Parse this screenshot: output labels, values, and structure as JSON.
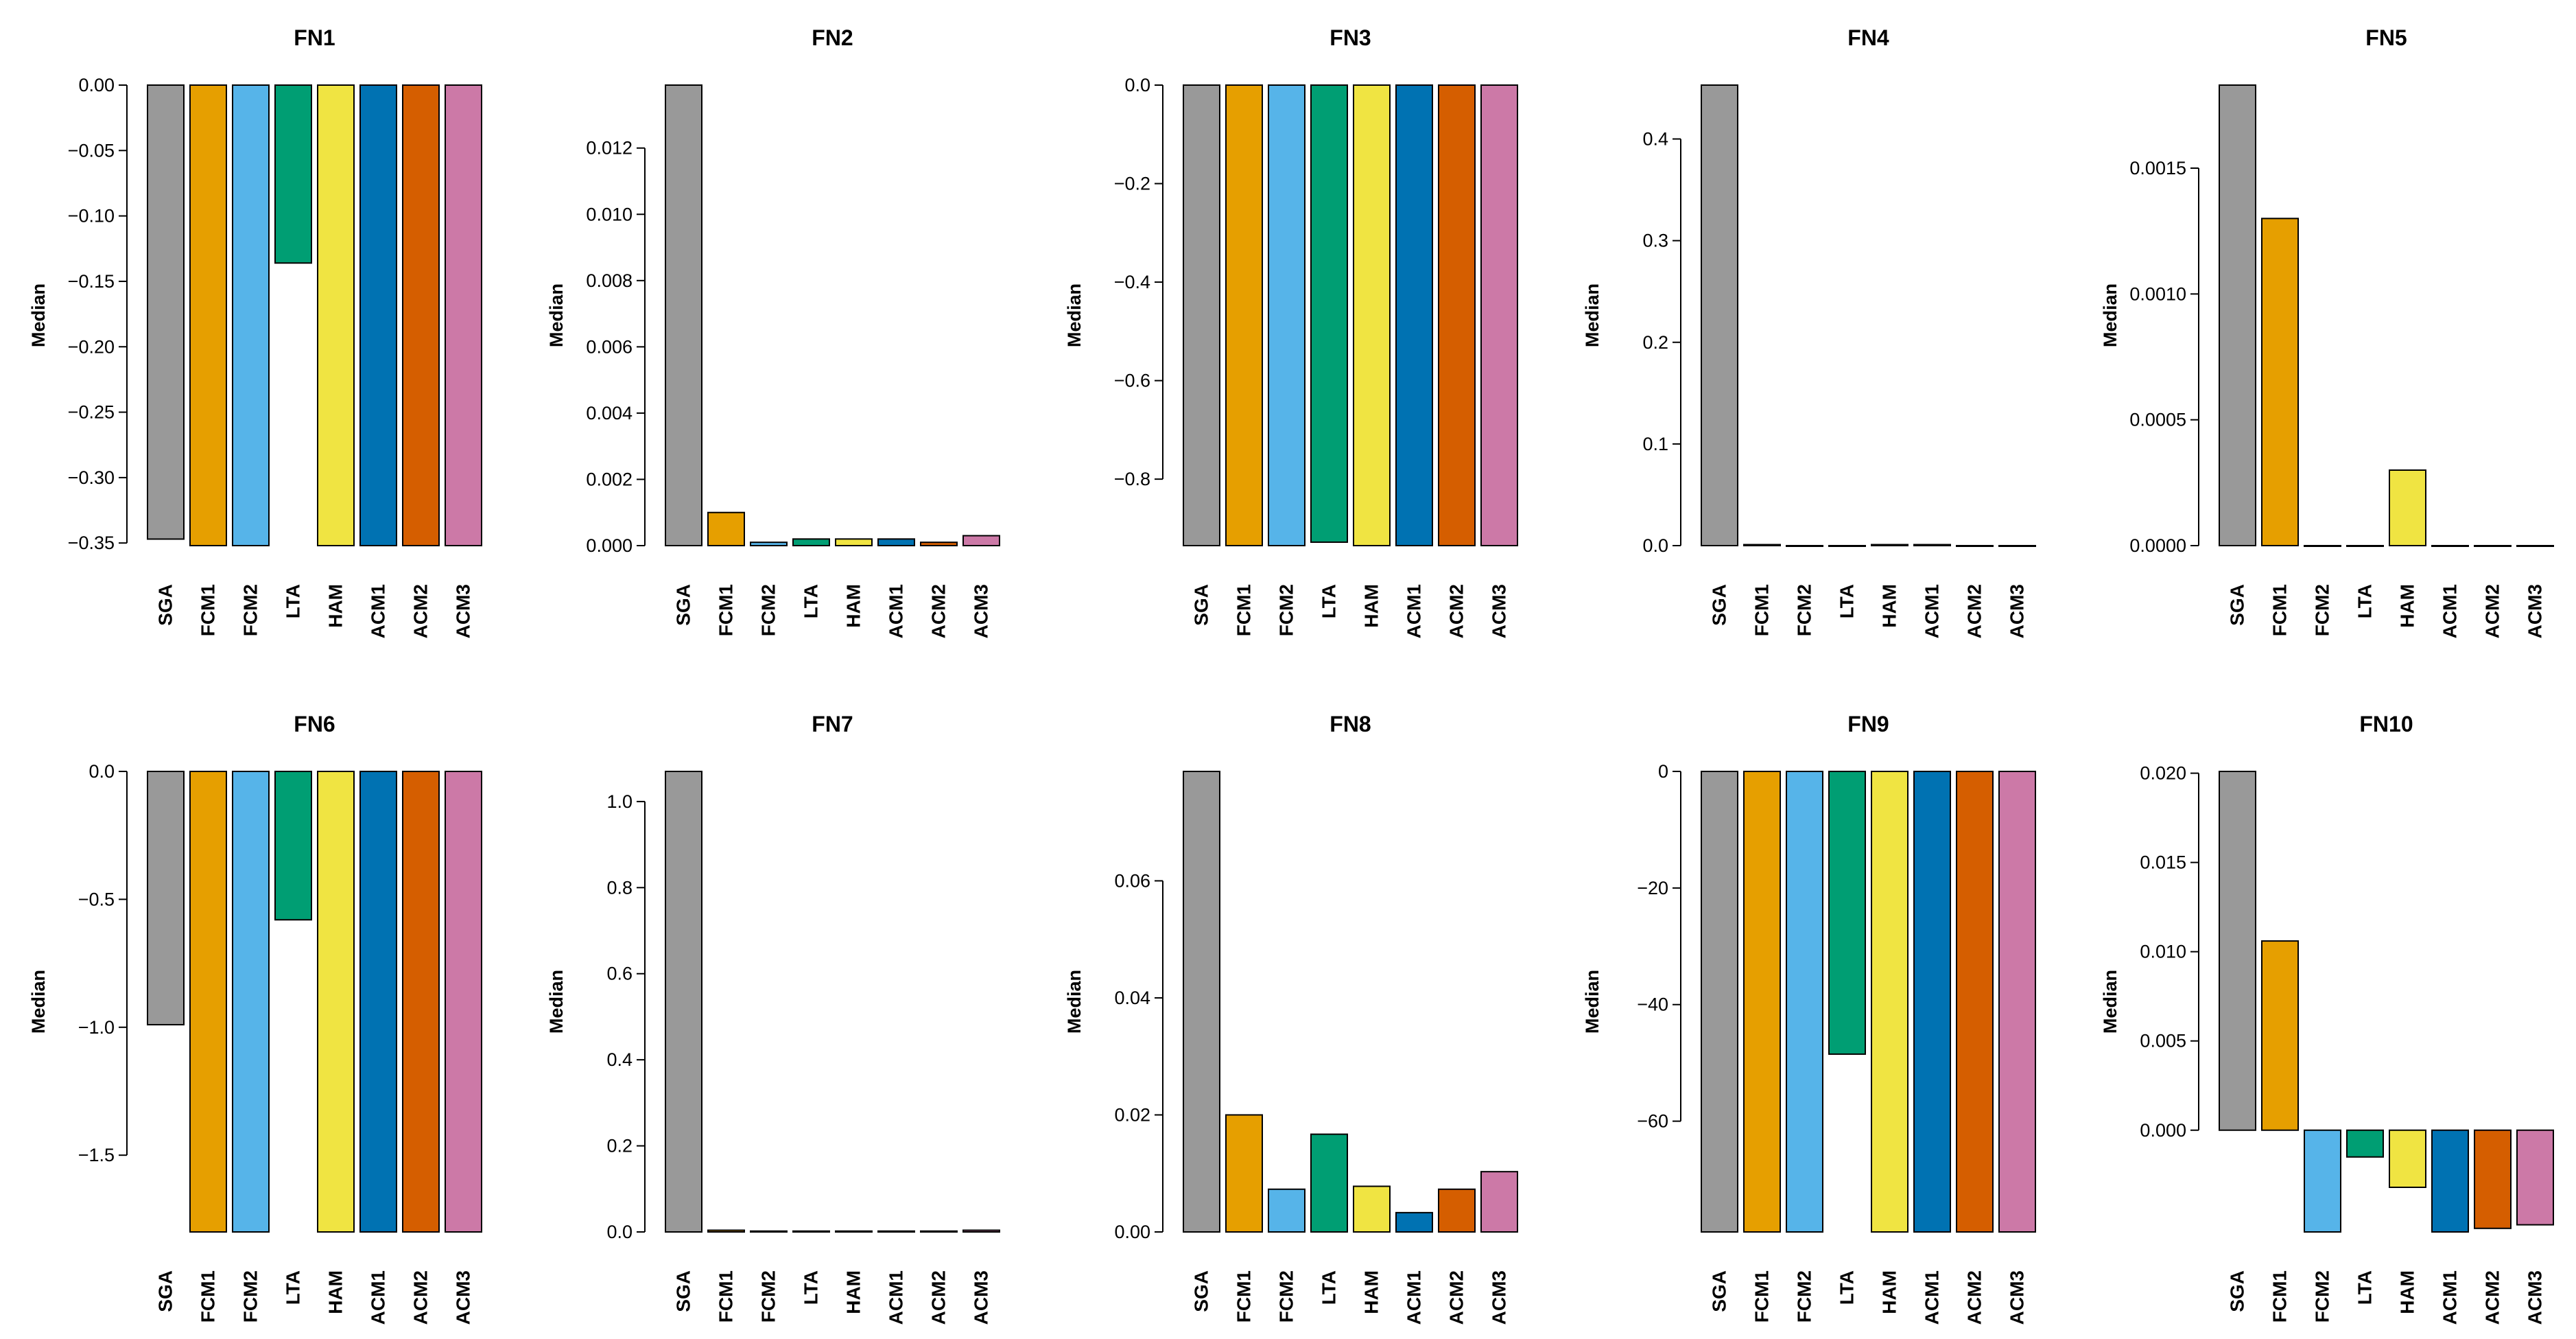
{
  "colors": {
    "SGA": "#999999",
    "FCM1": "#E69F00",
    "FCM2": "#56B4E9",
    "LTA": "#009E73",
    "HAM": "#F0E442",
    "ACM1": "#0072B2",
    "ACM2": "#D55E00",
    "ACM3": "#CC79A7"
  },
  "chart_data": [
    {
      "type": "bar",
      "title": "FN1",
      "ylabel": "Median",
      "categories": [
        "SGA",
        "FCM1",
        "FCM2",
        "LTA",
        "HAM",
        "ACM1",
        "ACM2",
        "ACM3"
      ],
      "values": [
        -0.347,
        -0.352,
        -0.352,
        -0.136,
        -0.352,
        -0.352,
        -0.352,
        -0.352
      ],
      "ylim": [
        -0.352,
        0.0
      ],
      "ticks": [
        0.0,
        -0.05,
        -0.1,
        -0.15,
        -0.2,
        -0.25,
        -0.3,
        -0.35
      ],
      "tick_labels": [
        "0.00",
        "−0.05",
        "−0.10",
        "−0.15",
        "−0.20",
        "−0.25",
        "−0.30",
        "−0.35"
      ]
    },
    {
      "type": "bar",
      "title": "FN2",
      "ylabel": "Median",
      "categories": [
        "SGA",
        "FCM1",
        "FCM2",
        "LTA",
        "HAM",
        "ACM1",
        "ACM2",
        "ACM3"
      ],
      "values": [
        0.0139,
        0.001,
        0.0001,
        0.0002,
        0.0002,
        0.0002,
        0.0001,
        0.0003
      ],
      "ylim": [
        0.0,
        0.0139
      ],
      "ticks": [
        0.0,
        0.002,
        0.004,
        0.006,
        0.008,
        0.01,
        0.012
      ],
      "tick_labels": [
        "0.000",
        "0.002",
        "0.004",
        "0.006",
        "0.008",
        "0.010",
        "0.012"
      ]
    },
    {
      "type": "bar",
      "title": "FN3",
      "ylabel": "Median",
      "categories": [
        "SGA",
        "FCM1",
        "FCM2",
        "LTA",
        "HAM",
        "ACM1",
        "ACM2",
        "ACM3"
      ],
      "values": [
        -0.935,
        -0.935,
        -0.935,
        -0.928,
        -0.935,
        -0.935,
        -0.935,
        -0.935
      ],
      "ylim": [
        -0.935,
        0.0
      ],
      "ticks": [
        0.0,
        -0.2,
        -0.4,
        -0.6,
        -0.8
      ],
      "tick_labels": [
        "0.0",
        "−0.2",
        "−0.4",
        "−0.6",
        "−0.8"
      ]
    },
    {
      "type": "bar",
      "title": "FN4",
      "ylabel": "Median",
      "categories": [
        "SGA",
        "FCM1",
        "FCM2",
        "LTA",
        "HAM",
        "ACM1",
        "ACM2",
        "ACM3"
      ],
      "values": [
        0.453,
        0.001,
        0.0,
        0.0,
        0.001,
        0.001,
        0.0,
        0.0
      ],
      "ylim": [
        0.0,
        0.453
      ],
      "ticks": [
        0.0,
        0.1,
        0.2,
        0.3,
        0.4
      ],
      "tick_labels": [
        "0.0",
        "0.1",
        "0.2",
        "0.3",
        "0.4"
      ]
    },
    {
      "type": "bar",
      "title": "FN5",
      "ylabel": "Median",
      "categories": [
        "SGA",
        "FCM1",
        "FCM2",
        "LTA",
        "HAM",
        "ACM1",
        "ACM2",
        "ACM3"
      ],
      "values": [
        0.00183,
        0.0013,
        0.0,
        0.0,
        0.0003,
        0.0,
        0.0,
        0.0
      ],
      "ylim": [
        0.0,
        0.00183
      ],
      "ticks": [
        0.0,
        0.0005,
        0.001,
        0.0015
      ],
      "tick_labels": [
        "0.0000",
        "0.0005",
        "0.0010",
        "0.0015"
      ]
    },
    {
      "type": "bar",
      "title": "FN6",
      "ylabel": "Median",
      "categories": [
        "SGA",
        "FCM1",
        "FCM2",
        "LTA",
        "HAM",
        "ACM1",
        "ACM2",
        "ACM3"
      ],
      "values": [
        -0.99,
        -1.8,
        -1.8,
        -0.58,
        -1.8,
        -1.8,
        -1.8,
        -1.8
      ],
      "ylim": [
        -1.8,
        0.0
      ],
      "ticks": [
        0.0,
        -0.5,
        -1.0,
        -1.5
      ],
      "tick_labels": [
        "0.0",
        "−0.5",
        "−1.0",
        "−1.5"
      ]
    },
    {
      "type": "bar",
      "title": "FN7",
      "ylabel": "Median",
      "categories": [
        "SGA",
        "FCM1",
        "FCM2",
        "LTA",
        "HAM",
        "ACM1",
        "ACM2",
        "ACM3"
      ],
      "values": [
        1.07,
        0.004,
        0.002,
        0.002,
        0.002,
        0.002,
        0.002,
        0.004
      ],
      "ylim": [
        0.0,
        1.07
      ],
      "ticks": [
        0.0,
        0.2,
        0.4,
        0.6,
        0.8,
        1.0
      ],
      "tick_labels": [
        "0.0",
        "0.2",
        "0.4",
        "0.6",
        "0.8",
        "1.0"
      ]
    },
    {
      "type": "bar",
      "title": "FN8",
      "ylabel": "Median",
      "categories": [
        "SGA",
        "FCM1",
        "FCM2",
        "LTA",
        "HAM",
        "ACM1",
        "ACM2",
        "ACM3"
      ],
      "values": [
        0.0787,
        0.02,
        0.0073,
        0.0167,
        0.0078,
        0.0033,
        0.0073,
        0.0103
      ],
      "ylim": [
        0.0,
        0.0787
      ],
      "ticks": [
        0.0,
        0.02,
        0.04,
        0.06
      ],
      "tick_labels": [
        "0.00",
        "0.02",
        "0.04",
        "0.06"
      ]
    },
    {
      "type": "bar",
      "title": "FN9",
      "ylabel": "Median",
      "categories": [
        "SGA",
        "FCM1",
        "FCM2",
        "LTA",
        "HAM",
        "ACM1",
        "ACM2",
        "ACM3"
      ],
      "values": [
        -79,
        -79,
        -79,
        -48.5,
        -79,
        -79,
        -79,
        -79
      ],
      "ylim": [
        -79,
        0
      ],
      "ticks": [
        0,
        -20,
        -40,
        -60
      ],
      "tick_labels": [
        "0",
        "−20",
        "−40",
        "−60"
      ]
    },
    {
      "type": "bar",
      "title": "FN10",
      "ylabel": "Median",
      "categories": [
        "SGA",
        "FCM1",
        "FCM2",
        "LTA",
        "HAM",
        "ACM1",
        "ACM2",
        "ACM3"
      ],
      "values": [
        0.0201,
        0.0106,
        -0.0057,
        -0.0015,
        -0.0032,
        -0.0057,
        -0.0055,
        -0.0053
      ],
      "ylim": [
        -0.0057,
        0.0201
      ],
      "ticks": [
        0.0,
        0.005,
        0.01,
        0.015,
        0.02
      ],
      "tick_labels": [
        "0.000",
        "0.005",
        "0.010",
        "0.015",
        "0.020"
      ]
    }
  ]
}
